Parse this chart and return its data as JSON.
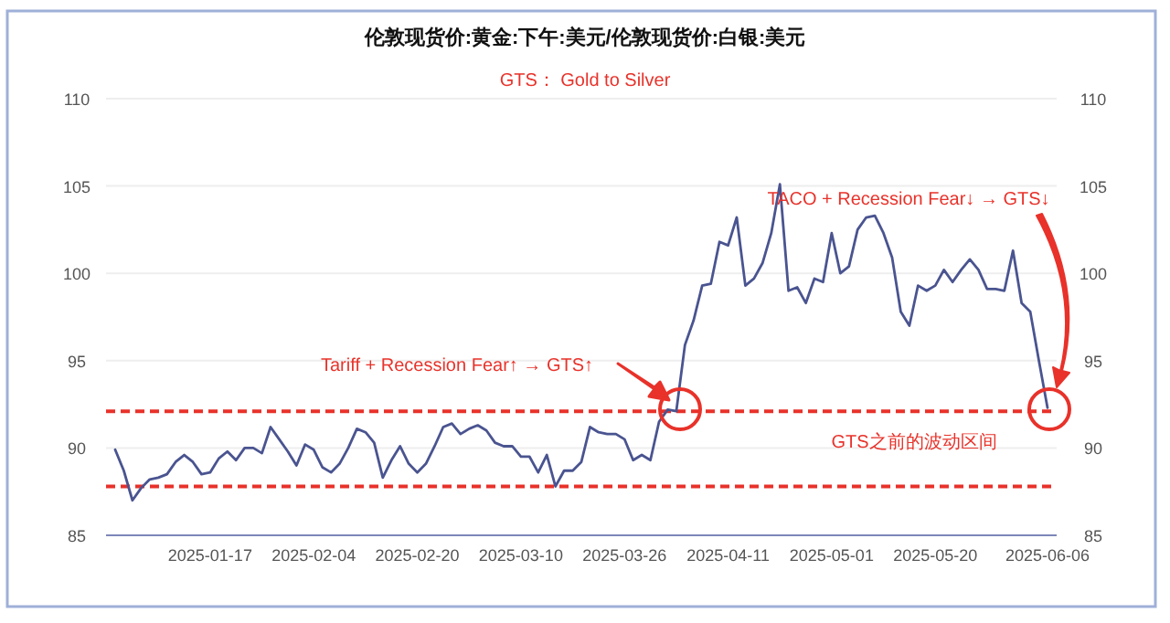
{
  "chart_data": {
    "type": "line",
    "title": "伦敦现货价:黄金:下午:美元/伦敦现货价:白银:美元",
    "subtitle": "GTS： Gold to Silver",
    "categories": [
      null,
      null,
      null,
      null,
      null,
      null,
      null,
      null,
      null,
      null,
      null,
      "2025-01-17",
      null,
      null,
      null,
      null,
      null,
      null,
      null,
      null,
      null,
      null,
      null,
      "2025-02-04",
      null,
      null,
      null,
      null,
      null,
      null,
      null,
      null,
      null,
      null,
      null,
      "2025-02-20",
      null,
      null,
      null,
      null,
      null,
      null,
      null,
      null,
      null,
      null,
      null,
      "2025-03-10",
      null,
      null,
      null,
      null,
      null,
      null,
      null,
      null,
      null,
      null,
      null,
      "2025-03-26",
      null,
      null,
      null,
      null,
      null,
      null,
      null,
      null,
      null,
      null,
      null,
      "2025-04-11",
      null,
      null,
      null,
      null,
      null,
      null,
      null,
      null,
      null,
      null,
      null,
      "2025-05-01",
      null,
      null,
      null,
      null,
      null,
      null,
      null,
      null,
      null,
      null,
      null,
      "2025-05-20",
      null,
      null,
      null,
      null,
      null,
      null,
      null,
      null,
      null,
      null,
      null,
      null,
      "2025-06-06"
    ],
    "series": [
      {
        "color": "#4a5490",
        "values": [
          89.9,
          88.7,
          87.0,
          87.7,
          88.2,
          88.3,
          88.5,
          89.2,
          89.6,
          89.2,
          88.5,
          88.6,
          89.4,
          89.8,
          89.3,
          90.0,
          90.0,
          89.7,
          91.2,
          90.5,
          89.8,
          89.0,
          90.2,
          89.9,
          88.9,
          88.6,
          89.1,
          90.0,
          91.1,
          90.9,
          90.3,
          88.3,
          89.3,
          90.1,
          89.1,
          88.6,
          89.1,
          90.1,
          91.2,
          91.4,
          90.8,
          91.1,
          91.3,
          91.0,
          90.3,
          90.1,
          90.1,
          89.5,
          89.5,
          88.6,
          89.6,
          87.8,
          88.7,
          88.7,
          89.2,
          91.2,
          90.9,
          90.8,
          90.8,
          90.5,
          89.3,
          89.6,
          89.3,
          91.5,
          92.2,
          92.1,
          95.9,
          97.3,
          99.3,
          99.4,
          101.8,
          101.6,
          103.2,
          99.3,
          99.7,
          100.6,
          102.3,
          105.1,
          99.0,
          99.2,
          98.3,
          99.7,
          99.5,
          102.3,
          100.0,
          100.4,
          102.5,
          103.2,
          103.3,
          102.3,
          100.9,
          97.8,
          97.0,
          99.3,
          99.0,
          99.3,
          100.2,
          99.5,
          100.2,
          100.8,
          100.2,
          99.1,
          99.1,
          99.0,
          101.3,
          98.3,
          97.8,
          95.0,
          92.3
        ]
      }
    ],
    "ylim": [
      85,
      110
    ],
    "yticks": [
      85,
      90,
      95,
      100,
      105,
      110
    ],
    "y2lim": [
      85,
      110
    ],
    "y2ticks": [
      85,
      90,
      95,
      100,
      105,
      110
    ],
    "grid": "y",
    "ref_lines": [
      {
        "axis": "y",
        "value": 92.1,
        "label": "GTS之前的波动区间",
        "color": "#e8322a",
        "line_style": "dashed"
      },
      {
        "axis": "y",
        "value": 87.8,
        "color": "#e8322a",
        "line_style": "dashed"
      }
    ],
    "annotations": [
      "Tariff + Recession Fear↑ → GTS↑",
      "TACO + Recession Fear↓ → GTS↓"
    ]
  }
}
